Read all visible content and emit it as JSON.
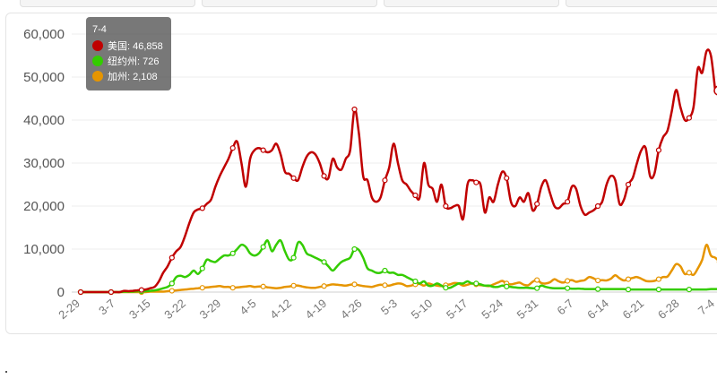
{
  "tooltip": {
    "title": "7-4",
    "rows": [
      {
        "color": "#c00000",
        "label": "美国: 46,858"
      },
      {
        "color": "#33cc00",
        "label": "纽约州: 726"
      },
      {
        "color": "#e69500",
        "label": "加州: 2,108"
      }
    ]
  },
  "chart_data": {
    "type": "line",
    "x_tick_labels": [
      "2-29",
      "3-7",
      "3-15",
      "3-22",
      "3-29",
      "4-5",
      "4-12",
      "4-19",
      "4-26",
      "5-3",
      "5-10",
      "5-17",
      "5-24",
      "5-31",
      "6-7",
      "6-14",
      "6-21",
      "6-28",
      "7-4"
    ],
    "y_tick_labels": [
      "0",
      "10,000",
      "20,000",
      "30,000",
      "40,000",
      "50,000",
      "60,000"
    ],
    "ylim": [
      0,
      60000
    ],
    "grid": true,
    "legend": "tooltip",
    "series": [
      {
        "name": "美国",
        "color": "#c00000",
        "values": [
          0,
          0,
          0,
          0,
          0,
          0,
          0,
          0,
          0,
          0,
          300,
          200,
          300,
          400,
          500,
          600,
          900,
          1200,
          2500,
          4500,
          6000,
          8000,
          9500,
          10500,
          13000,
          16000,
          18500,
          19200,
          19500,
          20500,
          21500,
          24500,
          27000,
          29000,
          31000,
          33500,
          35000,
          30000,
          24500,
          31000,
          33000,
          33500,
          33000,
          32500,
          33000,
          34500,
          32000,
          28000,
          27500,
          26500,
          26000,
          29000,
          31500,
          32500,
          32000,
          30000,
          27000,
          26500,
          31000,
          29000,
          28500,
          31000,
          33000,
          42500,
          37000,
          27000,
          26000,
          22000,
          21000,
          22000,
          26000,
          29000,
          34500,
          30000,
          26000,
          25000,
          23500,
          22500,
          22000,
          30000,
          25000,
          24000,
          21000,
          25000,
          20000,
          19500,
          20000,
          20000,
          17000,
          25000,
          26000,
          25500,
          25000,
          18500,
          22000,
          21000,
          25000,
          28000,
          26500,
          21000,
          20000,
          22000,
          21000,
          23000,
          19000,
          20500,
          24500,
          26000,
          23000,
          20000,
          19500,
          20500,
          21000,
          24500,
          24000,
          20000,
          18000,
          18500,
          19000,
          20000,
          21000,
          25000,
          27000,
          26000,
          20500,
          21500,
          25000,
          26500,
          30000,
          33000,
          33500,
          27000,
          27500,
          33000,
          36000,
          37500,
          42000,
          47000,
          43000,
          40000,
          40500,
          43000,
          52000,
          51000,
          56000,
          55000,
          46858
        ]
      },
      {
        "name": "纽约州",
        "color": "#33cc00",
        "values": [
          0,
          0,
          0,
          0,
          0,
          0,
          0,
          0,
          0,
          0,
          100,
          100,
          100,
          200,
          200,
          200,
          300,
          400,
          600,
          900,
          1200,
          2000,
          3500,
          3800,
          3500,
          4000,
          5000,
          4200,
          5500,
          7500,
          7200,
          7000,
          7800,
          8500,
          8500,
          9000,
          10000,
          11000,
          10500,
          9000,
          8500,
          9000,
          10500,
          12000,
          9500,
          11000,
          12000,
          9500,
          7500,
          8000,
          11500,
          11000,
          9000,
          8500,
          8000,
          7500,
          7000,
          6000,
          5000,
          6000,
          7000,
          7500,
          8000,
          10000,
          9800,
          8000,
          5500,
          5000,
          4500,
          4500,
          5000,
          4500,
          4500,
          4000,
          4000,
          3500,
          3000,
          2500,
          2000,
          2500,
          1500,
          1500,
          2000,
          1500,
          1000,
          1000,
          1500,
          2000,
          2000,
          2500,
          2000,
          2000,
          1800,
          1500,
          1500,
          1200,
          1200,
          1500,
          1300,
          1200,
          1100,
          1000,
          1000,
          1000,
          900,
          900,
          1500,
          1200,
          1000,
          900,
          900,
          900,
          900,
          800,
          800,
          800,
          700,
          700,
          700,
          700,
          700,
          700,
          700,
          700,
          700,
          700,
          600,
          600,
          600,
          600,
          600,
          600,
          600,
          600,
          600,
          600,
          600,
          600,
          600,
          600,
          600,
          600,
          600,
          600,
          600,
          700,
          700,
          726
        ]
      },
      {
        "name": "加州",
        "color": "#e69500",
        "values": [
          0,
          0,
          0,
          0,
          0,
          0,
          0,
          0,
          0,
          0,
          0,
          0,
          0,
          0,
          0,
          0,
          100,
          100,
          100,
          100,
          200,
          300,
          400,
          500,
          600,
          700,
          800,
          900,
          1000,
          1100,
          1200,
          1300,
          1400,
          1200,
          1200,
          1000,
          1100,
          1200,
          1300,
          1400,
          1200,
          1300,
          1300,
          1100,
          1000,
          900,
          1000,
          1200,
          1300,
          1500,
          1500,
          1300,
          1100,
          1000,
          1000,
          1200,
          1400,
          1600,
          1800,
          1700,
          1600,
          1500,
          1700,
          1800,
          1600,
          1400,
          1300,
          1200,
          1500,
          1700,
          1600,
          1500,
          1800,
          2000,
          1900,
          1400,
          1500,
          1800,
          1900,
          1500,
          2000,
          1700,
          1500,
          1400,
          1600,
          1800,
          2100,
          2000,
          1500,
          1700,
          2000,
          1800,
          1600,
          1500,
          1400,
          1800,
          2200,
          2600,
          2000,
          1800,
          2000,
          2200,
          1700,
          1600,
          2400,
          2800,
          2100,
          2000,
          2300,
          3000,
          2500,
          2200,
          2600,
          2800,
          2400,
          2600,
          2800,
          3500,
          3200,
          2700,
          2800,
          2700,
          3100,
          3900,
          3200,
          2700,
          3000,
          3300,
          3500,
          3100,
          2600,
          2500,
          2600,
          3000,
          3500,
          3600,
          5000,
          6500,
          6000,
          4200,
          4500,
          4000,
          5500,
          7500,
          11000,
          8500,
          8000,
          7000,
          5000,
          2108
        ]
      }
    ]
  }
}
